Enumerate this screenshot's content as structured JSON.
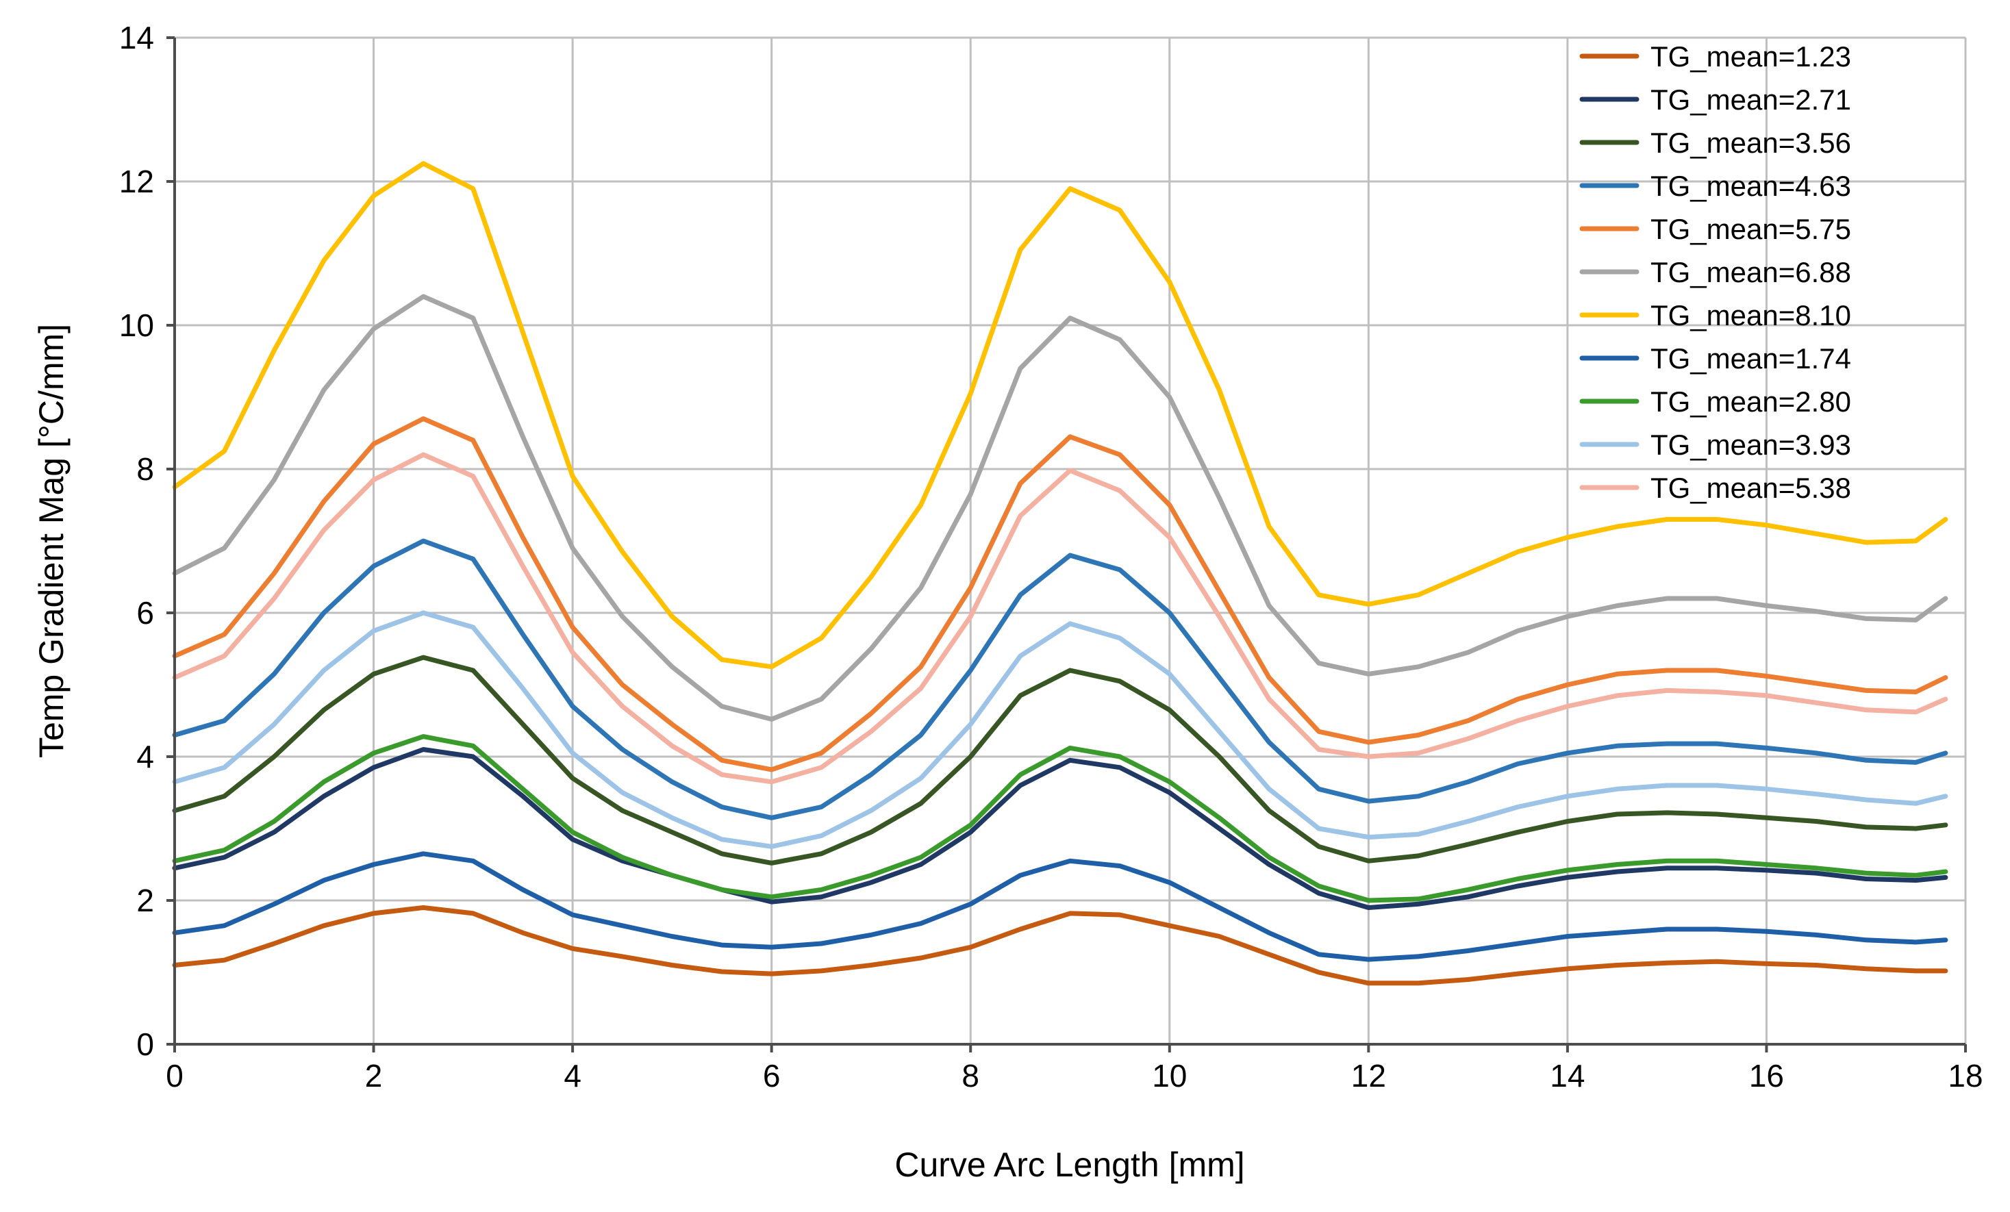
{
  "chart_data": {
    "type": "line",
    "title": "",
    "xlabel": "Curve Arc Length [mm]",
    "ylabel": "Temp Gradient Mag [°C/mm]",
    "xlim": [
      0,
      18
    ],
    "ylim": [
      0,
      14
    ],
    "xticks": [
      0,
      2,
      4,
      6,
      8,
      10,
      12,
      14,
      16,
      18
    ],
    "yticks": [
      0,
      2,
      4,
      6,
      8,
      10,
      12,
      14
    ],
    "grid": true,
    "legend_position": "top-right",
    "x": [
      0,
      0.5,
      1,
      1.5,
      2,
      2.5,
      3,
      3.5,
      4,
      4.5,
      5,
      5.5,
      6,
      6.5,
      7,
      7.5,
      8,
      8.5,
      9,
      9.5,
      10,
      10.5,
      11,
      11.5,
      12,
      12.5,
      13,
      13.5,
      14,
      14.5,
      15,
      15.5,
      16,
      16.5,
      17,
      17.5,
      17.8
    ],
    "series": [
      {
        "name": "TG_mean=1.23",
        "color": "#c55a11",
        "values": [
          1.1,
          1.17,
          1.4,
          1.65,
          1.82,
          1.9,
          1.82,
          1.55,
          1.33,
          1.22,
          1.1,
          1.01,
          0.98,
          1.02,
          1.1,
          1.2,
          1.35,
          1.6,
          1.82,
          1.8,
          1.65,
          1.5,
          1.25,
          1.0,
          0.85,
          0.85,
          0.9,
          0.98,
          1.05,
          1.1,
          1.13,
          1.15,
          1.12,
          1.1,
          1.05,
          1.02,
          1.02
        ]
      },
      {
        "name": "TG_mean=2.71",
        "color": "#203864",
        "values": [
          2.45,
          2.6,
          2.95,
          3.45,
          3.85,
          4.1,
          4.0,
          3.45,
          2.85,
          2.55,
          2.35,
          2.15,
          1.98,
          2.05,
          2.25,
          2.5,
          2.95,
          3.6,
          3.95,
          3.85,
          3.5,
          3.0,
          2.5,
          2.1,
          1.9,
          1.95,
          2.05,
          2.2,
          2.32,
          2.4,
          2.45,
          2.45,
          2.42,
          2.38,
          2.3,
          2.28,
          2.32
        ]
      },
      {
        "name": "TG_mean=3.56",
        "color": "#375623",
        "values": [
          3.25,
          3.45,
          4.0,
          4.65,
          5.15,
          5.38,
          5.2,
          4.45,
          3.7,
          3.25,
          2.95,
          2.65,
          2.52,
          2.65,
          2.95,
          3.35,
          4.0,
          4.85,
          5.2,
          5.05,
          4.65,
          4.0,
          3.25,
          2.75,
          2.55,
          2.62,
          2.78,
          2.95,
          3.1,
          3.2,
          3.22,
          3.2,
          3.15,
          3.1,
          3.02,
          3.0,
          3.05
        ]
      },
      {
        "name": "TG_mean=4.63",
        "color": "#2e75b6",
        "values": [
          4.3,
          4.5,
          5.15,
          6.0,
          6.65,
          7.0,
          6.75,
          5.7,
          4.7,
          4.1,
          3.65,
          3.3,
          3.15,
          3.3,
          3.75,
          4.3,
          5.2,
          6.25,
          6.8,
          6.6,
          6.0,
          5.1,
          4.2,
          3.55,
          3.38,
          3.45,
          3.65,
          3.9,
          4.05,
          4.15,
          4.18,
          4.18,
          4.12,
          4.05,
          3.95,
          3.92,
          4.05
        ]
      },
      {
        "name": "TG_mean=5.75",
        "color": "#ed7d31",
        "values": [
          5.4,
          5.7,
          6.55,
          7.55,
          8.35,
          8.7,
          8.4,
          7.05,
          5.8,
          5.0,
          4.45,
          3.95,
          3.82,
          4.05,
          4.6,
          5.25,
          6.35,
          7.8,
          8.45,
          8.2,
          7.5,
          6.3,
          5.1,
          4.35,
          4.2,
          4.3,
          4.5,
          4.8,
          5.0,
          5.15,
          5.2,
          5.2,
          5.12,
          5.02,
          4.92,
          4.9,
          5.1
        ]
      },
      {
        "name": "TG_mean=6.88",
        "color": "#a5a5a5",
        "values": [
          6.55,
          6.9,
          7.85,
          9.1,
          9.95,
          10.4,
          10.1,
          8.45,
          6.9,
          5.95,
          5.25,
          4.7,
          4.52,
          4.8,
          5.5,
          6.35,
          7.65,
          9.4,
          10.1,
          9.8,
          9.0,
          7.6,
          6.1,
          5.3,
          5.15,
          5.25,
          5.45,
          5.75,
          5.95,
          6.1,
          6.2,
          6.2,
          6.1,
          6.02,
          5.92,
          5.9,
          6.2
        ]
      },
      {
        "name": "TG_mean=8.10",
        "color": "#ffc000",
        "values": [
          7.75,
          8.25,
          9.65,
          10.9,
          11.8,
          12.25,
          11.9,
          9.9,
          7.9,
          6.85,
          5.95,
          5.35,
          5.25,
          5.65,
          6.5,
          7.5,
          9.05,
          11.05,
          11.9,
          11.6,
          10.6,
          9.1,
          7.2,
          6.25,
          6.12,
          6.25,
          6.55,
          6.85,
          7.05,
          7.2,
          7.3,
          7.3,
          7.22,
          7.1,
          6.98,
          7.0,
          7.3
        ]
      },
      {
        "name": "TG_mean=1.74",
        "color": "#1f5fa8",
        "values": [
          1.55,
          1.65,
          1.95,
          2.28,
          2.5,
          2.65,
          2.55,
          2.15,
          1.8,
          1.65,
          1.5,
          1.38,
          1.35,
          1.4,
          1.52,
          1.68,
          1.95,
          2.35,
          2.55,
          2.48,
          2.25,
          1.9,
          1.55,
          1.25,
          1.18,
          1.22,
          1.3,
          1.4,
          1.5,
          1.55,
          1.6,
          1.6,
          1.57,
          1.52,
          1.45,
          1.42,
          1.45
        ]
      },
      {
        "name": "TG_mean=2.80",
        "color": "#3a9b2c",
        "values": [
          2.55,
          2.7,
          3.1,
          3.65,
          4.05,
          4.28,
          4.15,
          3.55,
          2.95,
          2.6,
          2.35,
          2.15,
          2.05,
          2.15,
          2.35,
          2.6,
          3.05,
          3.75,
          4.12,
          4.0,
          3.65,
          3.15,
          2.6,
          2.2,
          2.0,
          2.02,
          2.15,
          2.3,
          2.42,
          2.5,
          2.55,
          2.55,
          2.5,
          2.45,
          2.38,
          2.35,
          2.4
        ]
      },
      {
        "name": "TG_mean=3.93",
        "color": "#9dc3e6",
        "values": [
          3.65,
          3.85,
          4.45,
          5.2,
          5.75,
          6.0,
          5.8,
          4.95,
          4.05,
          3.5,
          3.15,
          2.85,
          2.75,
          2.9,
          3.25,
          3.7,
          4.45,
          5.4,
          5.85,
          5.65,
          5.15,
          4.35,
          3.55,
          3.0,
          2.88,
          2.92,
          3.1,
          3.3,
          3.45,
          3.55,
          3.6,
          3.6,
          3.55,
          3.48,
          3.4,
          3.35,
          3.45
        ]
      },
      {
        "name": "TG_mean=5.38",
        "color": "#f4b0a0",
        "values": [
          5.1,
          5.4,
          6.2,
          7.15,
          7.85,
          8.2,
          7.9,
          6.65,
          5.45,
          4.7,
          4.15,
          3.75,
          3.65,
          3.85,
          4.35,
          4.95,
          5.95,
          7.35,
          7.98,
          7.7,
          7.05,
          5.95,
          4.8,
          4.1,
          4.0,
          4.05,
          4.25,
          4.5,
          4.7,
          4.85,
          4.92,
          4.9,
          4.85,
          4.75,
          4.65,
          4.62,
          4.8
        ]
      }
    ]
  }
}
